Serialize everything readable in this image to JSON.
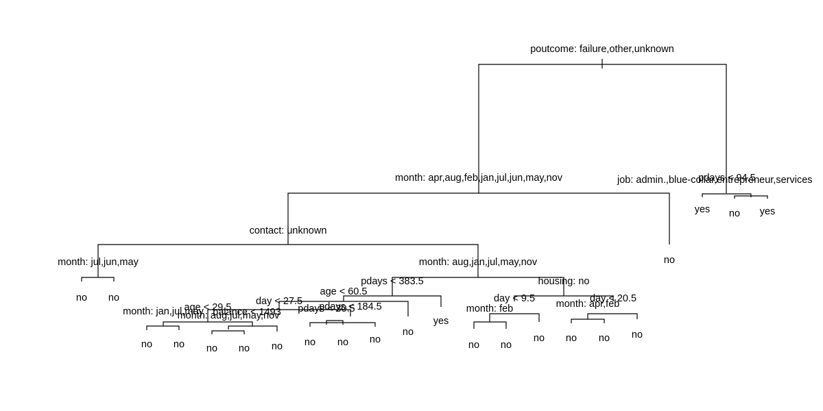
{
  "tree": {
    "type": "decision-tree",
    "splits": {
      "root": "poutcome: failure,other,unknown",
      "n1": "month: apr,aug,feb,jan,jul,jun,may,nov",
      "n1a": "contact: unknown",
      "n1a1": "month: jul,jun,may",
      "n1a2": "month: aug,jan,jul,may,nov",
      "pdays383": "pdays < 383.5",
      "age605": "age < 60.5",
      "day275": "day < 27.5",
      "monthJanJulMay": "month: jan,jul,may",
      "age295": "age < 29.5",
      "balance1493": "balance < 1493",
      "monthAugJulMayNov": "month: aug,jul,may,nov",
      "pdays305": "pdays < 30.5",
      "pdays1845": "pdays < 184.5",
      "housing": "housing: no",
      "day95": "day < 9.5",
      "monthFeb": "month: feb",
      "monthAprFeb": "month: apr,feb",
      "day205": "day < 20.5",
      "job": "job: admin.,blue-collar,entrepreneur,services",
      "pdays945": "pdays < 94.5"
    },
    "leaves": {
      "l1": "no",
      "l2": "no",
      "l3": "no",
      "l4": "no",
      "l5": "no",
      "l6": "no",
      "l7": "no",
      "l8": "no",
      "l9": "no",
      "l10": "no",
      "l11": "no",
      "l12": "yes",
      "l13": "no",
      "l14": "no",
      "l15": "no",
      "l16": "no",
      "l17": "no",
      "l18": "no",
      "l19": "no",
      "l20": "yes",
      "l21": "no",
      "l22": "yes"
    }
  }
}
